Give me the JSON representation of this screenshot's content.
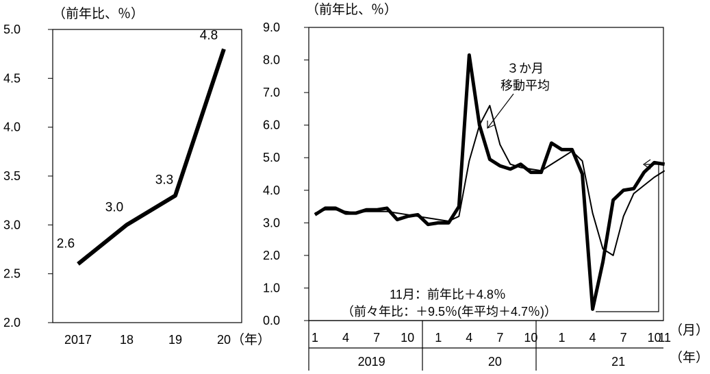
{
  "chart_data": [
    {
      "type": "line",
      "unit_label": "（前年比、％）",
      "xunit": "（年）",
      "ylim": [
        2.0,
        5.0
      ],
      "yticks": [
        "2.0",
        "2.5",
        "3.0",
        "3.5",
        "4.0",
        "4.5",
        "5.0"
      ],
      "categories": [
        "2017",
        "18",
        "19",
        "20"
      ],
      "values": [
        2.6,
        3.0,
        3.3,
        4.8
      ],
      "data_labels": [
        "2.6",
        "3.0",
        "3.3",
        "4.8"
      ],
      "color": "#000000"
    },
    {
      "type": "line",
      "unit_label": "（前年比、％）",
      "ylim": [
        0.0,
        9.0
      ],
      "yticks": [
        "0.0",
        "1.0",
        "2.0",
        "3.0",
        "4.0",
        "5.0",
        "6.0",
        "7.0",
        "8.0",
        "9.0"
      ],
      "month_ticks": [
        "1",
        "4",
        "7",
        "10",
        "1",
        "4",
        "7",
        "10",
        "1",
        "4",
        "7",
        "10",
        "11"
      ],
      "month_positions": [
        1,
        4,
        7,
        10,
        13,
        16,
        19,
        22,
        25,
        28,
        31,
        34,
        35
      ],
      "year_labels": [
        "2019",
        "20",
        "21"
      ],
      "month_unit": "（月）",
      "year_unit": "（年）",
      "series": [
        {
          "x": [
            1,
            2,
            3,
            4,
            5,
            6,
            7,
            8,
            9,
            10,
            11,
            12,
            13,
            14,
            15,
            16,
            17,
            18,
            19,
            20,
            21,
            22,
            23,
            24,
            25,
            26,
            27,
            28,
            29,
            30,
            31,
            32,
            33,
            34,
            35
          ],
          "values": [
            3.25,
            3.45,
            3.45,
            3.3,
            3.3,
            3.4,
            3.4,
            3.45,
            3.1,
            3.2,
            3.25,
            2.95,
            3.0,
            3.0,
            3.5,
            8.15,
            6.0,
            4.95,
            4.75,
            4.65,
            4.8,
            4.55,
            4.55,
            5.45,
            5.25,
            5.25,
            4.5,
            0.35,
            1.8,
            3.7,
            4.0,
            4.05,
            4.55,
            4.85,
            4.8
          ],
          "color": "#000000"
        },
        {
          "x": [
            1,
            2,
            3,
            4,
            5,
            6,
            7,
            8,
            9,
            10,
            11,
            12,
            13,
            14,
            15,
            16,
            17,
            18,
            19,
            20,
            21,
            22,
            23,
            24,
            25,
            26,
            27,
            28,
            29,
            30,
            31,
            32,
            33,
            34,
            35
          ],
          "values": [
            3.3,
            3.4,
            3.4,
            3.35,
            3.3,
            3.35,
            3.35,
            3.35,
            3.3,
            3.25,
            3.2,
            3.15,
            3.1,
            3.05,
            3.2,
            4.9,
            6.0,
            6.6,
            5.4,
            4.8,
            4.7,
            4.65,
            4.6,
            4.8,
            5.0,
            5.2,
            4.9,
            3.3,
            2.2,
            2.0,
            3.2,
            3.9,
            4.15,
            4.4,
            4.6
          ],
          "color": "#000000"
        }
      ],
      "annotations": {
        "moving_average_line1": "３か月",
        "moving_average_line2": "移動平均",
        "latest_line1": "11月：前年比＋4.8％",
        "latest_line2": "（前々年比：＋9.5％(年平均＋4.7％)）"
      }
    }
  ]
}
